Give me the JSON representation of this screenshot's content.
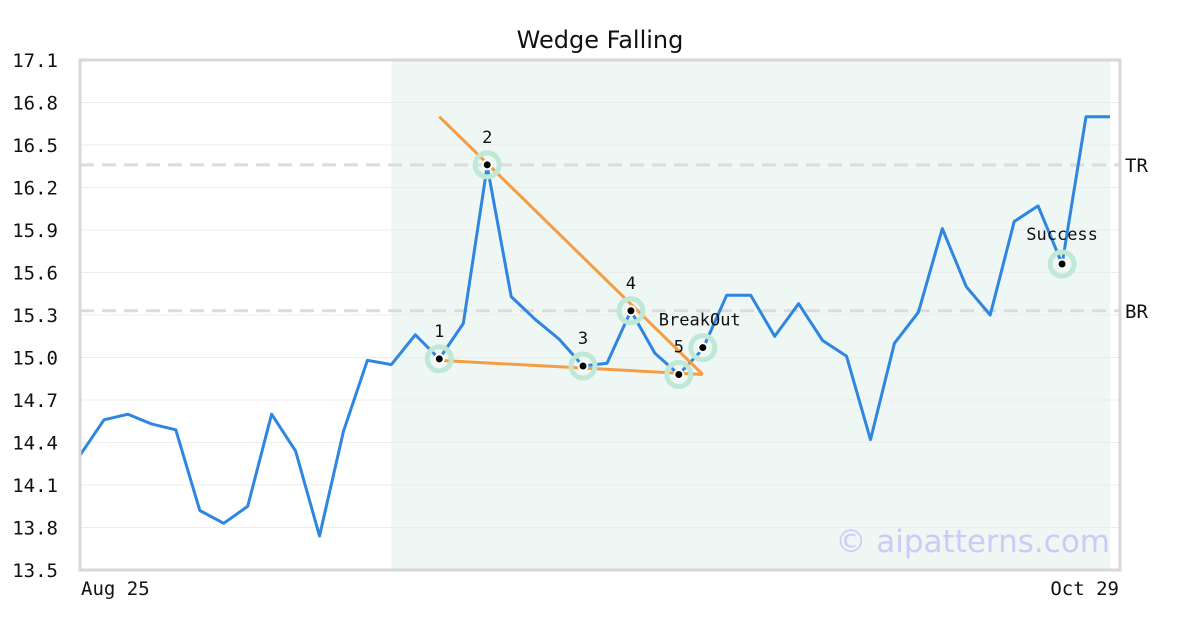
{
  "chart_data": {
    "type": "line",
    "title": "Wedge Falling",
    "x_tick_labels": [
      "Aug 25",
      "Oct 29"
    ],
    "ylim": [
      13.5,
      17.1
    ],
    "y_ticks": [
      "13.5",
      "13.8",
      "14.1",
      "14.4",
      "14.7",
      "15.0",
      "15.3",
      "15.6",
      "15.9",
      "16.2",
      "16.5",
      "16.8",
      "17.1"
    ],
    "grid": true,
    "series": [
      {
        "color": "#2f86e0",
        "values": [
          14.31,
          14.56,
          14.6,
          14.53,
          14.49,
          13.92,
          13.83,
          13.95,
          14.6,
          14.34,
          13.74,
          14.48,
          14.98,
          14.95,
          15.16,
          14.99,
          15.24,
          16.35,
          15.43,
          15.27,
          15.13,
          14.94,
          14.96,
          15.33,
          15.03,
          14.88,
          15.06,
          15.44,
          15.44,
          15.15,
          15.38,
          15.12,
          15.01,
          14.42,
          15.1,
          15.32,
          15.91,
          15.5,
          15.3,
          15.96,
          16.07,
          15.66,
          16.7,
          16.7
        ]
      }
    ],
    "levels": [
      {
        "label": "TR",
        "value": 16.36
      },
      {
        "label": "BR",
        "value": 15.33
      }
    ],
    "pattern_points": [
      {
        "label": "1",
        "index": 15,
        "value": 14.99
      },
      {
        "label": "2",
        "index": 17,
        "value": 16.36
      },
      {
        "label": "3",
        "index": 21,
        "value": 14.94
      },
      {
        "label": "4",
        "index": 23,
        "value": 15.33
      },
      {
        "label": "5",
        "index": 25,
        "value": 14.88
      },
      {
        "label": "BreakOut",
        "index": 26,
        "value": 15.07
      },
      {
        "label": "Success",
        "index": 41,
        "value": 15.66
      }
    ],
    "trend_lines": [
      {
        "color": "#f59d45",
        "from": {
          "index": 15,
          "value": 14.98
        },
        "to": {
          "index": 26,
          "value": 14.88
        }
      },
      {
        "color": "#f59d45",
        "from": {
          "index": 15,
          "value": 16.7
        },
        "to": {
          "index": 26,
          "value": 14.88
        }
      }
    ],
    "highlight_range": {
      "from_index": 13,
      "to_index": 43,
      "color": "#eef7f3"
    },
    "marker_halo_color": "#bfe8d6",
    "watermark": "© aipatterns.com"
  }
}
